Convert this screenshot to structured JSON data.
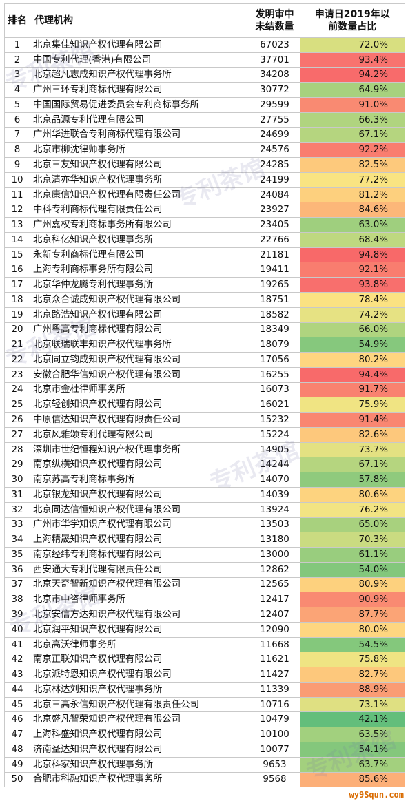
{
  "header": {
    "rank": "排名",
    "agency": "代理机构",
    "pending": "发明审中\n未结数量",
    "ratio": "申请日2019年以\n前数量占比"
  },
  "rows": [
    {
      "rank": "1",
      "name": "北京集佳知识产权代理有限公司",
      "count": "67023",
      "pct": "72.0%",
      "color": "#d8df80"
    },
    {
      "rank": "2",
      "name": "中国专利代理(香港)有限公司",
      "count": "37701",
      "pct": "93.4%",
      "color": "#f8736f"
    },
    {
      "rank": "3",
      "name": "北京超凡志成知识产权代理事务所",
      "count": "34208",
      "pct": "94.2%",
      "color": "#f86b6b"
    },
    {
      "rank": "4",
      "name": "广州三环专利商标代理有限公司",
      "count": "30772",
      "pct": "64.9%",
      "color": "#a7d17e"
    },
    {
      "rank": "5",
      "name": "中国国际贸易促进委员会专利商标事务所",
      "count": "29599",
      "pct": "91.0%",
      "color": "#f98a72"
    },
    {
      "rank": "6",
      "name": "北京品源专利代理有限公司",
      "count": "27755",
      "pct": "66.3%",
      "color": "#b0d47f"
    },
    {
      "rank": "7",
      "name": "广州华进联合专利商标代理有限公司",
      "count": "24699",
      "pct": "67.1%",
      "color": "#b5d57f"
    },
    {
      "rank": "8",
      "name": "北京市柳沈律师事务所",
      "count": "24576",
      "pct": "92.2%",
      "color": "#f97d6f"
    },
    {
      "rank": "9",
      "name": "北京三友知识产权代理有限公司",
      "count": "24285",
      "pct": "82.5%",
      "color": "#fdc97c"
    },
    {
      "rank": "10",
      "name": "北京清亦华知识产权代理事务所",
      "count": "24199",
      "pct": "77.2%",
      "color": "#f9e482"
    },
    {
      "rank": "11",
      "name": "北京康信知识产权代理有限责任公司",
      "count": "24084",
      "pct": "81.2%",
      "color": "#fdd07e"
    },
    {
      "rank": "12",
      "name": "中科专利商标代理有限责任公司",
      "count": "23927",
      "pct": "84.6%",
      "color": "#fcb779"
    },
    {
      "rank": "13",
      "name": "广州嘉权专利商标事务所有限公司",
      "count": "23405",
      "pct": "63.0%",
      "color": "#9fcf7e"
    },
    {
      "rank": "14",
      "name": "北京科亿知识产权代理事务所",
      "count": "22766",
      "pct": "68.4%",
      "color": "#bed880"
    },
    {
      "rank": "15",
      "name": "永新专利商标代理有限公司",
      "count": "21181",
      "pct": "94.8%",
      "color": "#f86969"
    },
    {
      "rank": "16",
      "name": "上海专利商标事务所有限公司",
      "count": "19411",
      "pct": "92.1%",
      "color": "#f97d6f"
    },
    {
      "rank": "17",
      "name": "北京华仲龙腾专利代理事务所",
      "count": "19265",
      "pct": "93.8%",
      "color": "#f86f6d"
    },
    {
      "rank": "18",
      "name": "北京众合诚成知识产权代理有限公司",
      "count": "18751",
      "pct": "78.4%",
      "color": "#fbe282"
    },
    {
      "rank": "19",
      "name": "北京路浩知识产权代理有限公司",
      "count": "18582",
      "pct": "74.2%",
      "color": "#e6e283"
    },
    {
      "rank": "20",
      "name": "广州粤高专利商标代理有限公司",
      "count": "18349",
      "pct": "66.0%",
      "color": "#afd47f"
    },
    {
      "rank": "21",
      "name": "北京联瑞联丰知识产权代理事务所",
      "count": "18079",
      "pct": "54.9%",
      "color": "#86c87d"
    },
    {
      "rank": "22",
      "name": "北京同立钧成知识产权代理有限公司",
      "count": "17056",
      "pct": "80.2%",
      "color": "#fed580"
    },
    {
      "rank": "23",
      "name": "安徽合肥华信知识产权代理有限公司",
      "count": "16255",
      "pct": "94.4%",
      "color": "#f86a6a"
    },
    {
      "rank": "24",
      "name": "北京市金杜律师事务所",
      "count": "16073",
      "pct": "91.7%",
      "color": "#f98270"
    },
    {
      "rank": "25",
      "name": "北京轻创知识产权代理有限公司",
      "count": "16021",
      "pct": "75.9%",
      "color": "#f0e483"
    },
    {
      "rank": "26",
      "name": "中原信达知识产权代理有限责任公司",
      "count": "15232",
      "pct": "91.4%",
      "color": "#f98671"
    },
    {
      "rank": "27",
      "name": "北京风雅颂专利代理有限公司",
      "count": "15224",
      "pct": "82.6%",
      "color": "#fdc87c"
    },
    {
      "rank": "28",
      "name": "深圳市世纪恒程知识产权代理事务所",
      "count": "14905",
      "pct": "73.7%",
      "color": "#e3e182"
    },
    {
      "rank": "29",
      "name": "南京纵横知识产权代理有限公司",
      "count": "14244",
      "pct": "67.1%",
      "color": "#b5d57f"
    },
    {
      "rank": "30",
      "name": "南京苏高专利商标事务所",
      "count": "14070",
      "pct": "57.8%",
      "color": "#8fca7d"
    },
    {
      "rank": "31",
      "name": "北京银龙知识产权代理有限公司",
      "count": "14039",
      "pct": "80.6%",
      "color": "#fdd37f"
    },
    {
      "rank": "32",
      "name": "北京同达信恒知识产权代理有限公司",
      "count": "13924",
      "pct": "76.2%",
      "color": "#f2e483"
    },
    {
      "rank": "33",
      "name": "广州市华学知识产权代理有限公司",
      "count": "13503",
      "pct": "65.0%",
      "color": "#a8d17e"
    },
    {
      "rank": "34",
      "name": "上海精晟知识产权代理有限公司",
      "count": "13180",
      "pct": "70.3%",
      "color": "#cadb81"
    },
    {
      "rank": "35",
      "name": "南京经纬专利商标代理有限公司",
      "count": "13000",
      "pct": "61.1%",
      "color": "#99cd7e"
    },
    {
      "rank": "36",
      "name": "西安通大专利代理有限责任公司",
      "count": "12862",
      "pct": "54.0%",
      "color": "#83c77c"
    },
    {
      "rank": "37",
      "name": "北京天奇智新知识产权代理有限公司",
      "count": "12565",
      "pct": "80.9%",
      "color": "#fdd17e"
    },
    {
      "rank": "38",
      "name": "北京市中咨律师事务所",
      "count": "12417",
      "pct": "90.9%",
      "color": "#f98a72"
    },
    {
      "rank": "39",
      "name": "北京安信方达知识产权代理有限公司",
      "count": "12407",
      "pct": "87.7%",
      "color": "#fba476"
    },
    {
      "rank": "40",
      "name": "北京润平知识产权代理有限公司",
      "count": "12090",
      "pct": "80.0%",
      "color": "#fed680"
    },
    {
      "rank": "41",
      "name": "北京高沃律师事务所",
      "count": "11668",
      "pct": "54.5%",
      "color": "#84c87c"
    },
    {
      "rank": "42",
      "name": "南京正联知识产权代理有限公司",
      "count": "11621",
      "pct": "75.8%",
      "color": "#efe483"
    },
    {
      "rank": "43",
      "name": "北京派特恩知识产权代理有限公司",
      "count": "11427",
      "pct": "82.7%",
      "color": "#fdc87c"
    },
    {
      "rank": "44",
      "name": "北京林达刘知识产权代理事务所",
      "count": "11339",
      "pct": "88.9%",
      "color": "#fa9c74"
    },
    {
      "rank": "45",
      "name": "北京三高永信知识产权代理有限责任公司",
      "count": "10716",
      "pct": "73.1%",
      "color": "#dfe082"
    },
    {
      "rank": "46",
      "name": "北京盛凡智荣知识产权代理有限公司",
      "count": "10479",
      "pct": "42.1%",
      "color": "#63be7b"
    },
    {
      "rank": "47",
      "name": "上海科盛知识产权代理有限公司",
      "count": "10100",
      "pct": "63.5%",
      "color": "#a2d07e"
    },
    {
      "rank": "48",
      "name": "济南圣达知识产权代理有限公司",
      "count": "10077",
      "pct": "54.1%",
      "color": "#84c77c"
    },
    {
      "rank": "49",
      "name": "北京科家知识产权代理事务所",
      "count": "9653",
      "pct": "63.7%",
      "color": "#a3d07e"
    },
    {
      "rank": "50",
      "name": "合肥市科融知识产权代理事务所",
      "count": "9568",
      "pct": "85.6%",
      "color": "#fcaf78"
    }
  ],
  "watermark": "专利茶馆",
  "site": "wy9Squn.com"
}
